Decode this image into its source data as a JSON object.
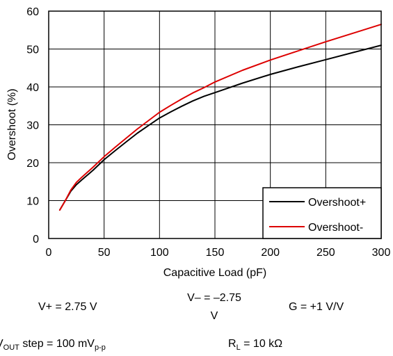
{
  "chart_data": {
    "type": "line",
    "xlabel": "Capacitive Load (pF)",
    "ylabel": "Overshoot (%)",
    "xlim": [
      0,
      300
    ],
    "ylim": [
      0,
      60
    ],
    "xticks": [
      0,
      50,
      100,
      150,
      200,
      250,
      300
    ],
    "yticks": [
      0,
      10,
      20,
      30,
      40,
      50,
      60
    ],
    "xtick_labels": [
      "0",
      "50",
      "100",
      "150",
      "200",
      "250",
      "300"
    ],
    "ytick_labels": [
      "0",
      "10",
      "20",
      "30",
      "40",
      "50",
      "60"
    ],
    "grid": true,
    "legend_position": "bottom-right",
    "series": [
      {
        "name": "Overshoot+",
        "color": "#000000",
        "x": [
          10,
          15,
          20,
          25,
          30,
          40,
          50,
          60,
          70,
          80,
          90,
          100,
          110,
          120,
          130,
          140,
          150,
          175,
          200,
          225,
          250,
          275,
          300
        ],
        "y": [
          7.5,
          10,
          12.5,
          14.2,
          15.5,
          18,
          20.8,
          23.2,
          25.5,
          27.8,
          29.8,
          31.8,
          33.4,
          34.9,
          36.3,
          37.5,
          38.5,
          41,
          43.3,
          45.3,
          47.2,
          49.1,
          51
        ]
      },
      {
        "name": "Overshoot-",
        "color": "#dd0000",
        "x": [
          10,
          15,
          20,
          25,
          30,
          40,
          50,
          60,
          70,
          80,
          90,
          100,
          110,
          120,
          130,
          140,
          150,
          175,
          200,
          225,
          250,
          275,
          300
        ],
        "y": [
          7.5,
          10,
          12.8,
          14.8,
          16.2,
          18.8,
          21.6,
          24.1,
          26.5,
          28.9,
          31.1,
          33.3,
          35.1,
          36.8,
          38.4,
          39.8,
          41.3,
          44.4,
          47.1,
          49.5,
          51.9,
          54.2,
          56.5
        ]
      }
    ]
  },
  "conditions": {
    "vplus": "V+ = 2.75 V",
    "vminus_line1": "V– = –2.75",
    "vminus_line2": "V",
    "gain": "G = +1 V/V",
    "vout_prefix": "V",
    "vout_sub": "OUT",
    "vout_mid": " step = 100 mV",
    "vout_sub2": "p-p",
    "rl_prefix": "R",
    "rl_sub": "L",
    "rl_suffix": " = 10 kΩ"
  }
}
